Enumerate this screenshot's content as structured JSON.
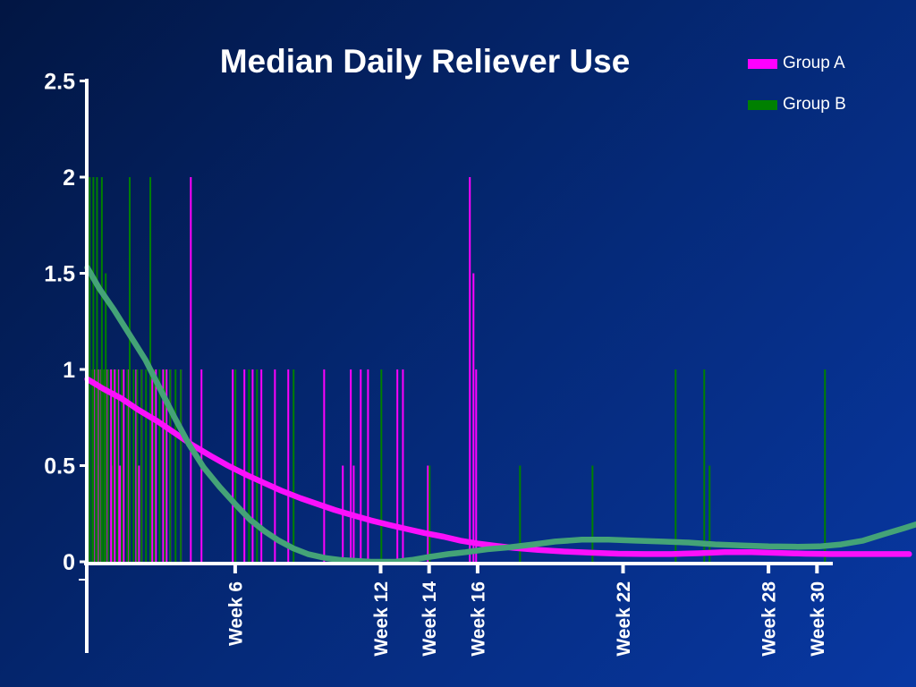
{
  "slide": {
    "background_top_left": "#021643",
    "background_bottom_right": "#0838a3",
    "text_color": "#ffffff"
  },
  "legend": {
    "position": "top-right",
    "items": [
      {
        "label": "Group A",
        "color": "#ff00ff"
      },
      {
        "label": "Group B",
        "color": "#008000"
      }
    ]
  },
  "chart_data": {
    "type": "line",
    "title": "Median Daily Reliever Use",
    "xlabel": "",
    "ylabel": "",
    "x_unit": "weeks",
    "y_unit": "reliever uses per day",
    "xlim": [
      -0.3,
      34.2
    ],
    "ylim": [
      0,
      2.5
    ],
    "grid": false,
    "legend_position": "top-right",
    "axis_color": "#ffffff",
    "y_ticks": [
      {
        "label": "2.5",
        "value": 2.5
      },
      {
        "label": "2",
        "value": 2.0
      },
      {
        "label": "1.5",
        "value": 1.5
      },
      {
        "label": "1",
        "value": 1.0
      },
      {
        "label": "0.5",
        "value": 0.5
      },
      {
        "label": "0",
        "value": 0.0
      }
    ],
    "x_ticks": [
      {
        "label": "Week 6",
        "value": 6
      },
      {
        "label": "Week 12",
        "value": 12
      },
      {
        "label": "Week 14",
        "value": 14
      },
      {
        "label": "Week 16",
        "value": 16
      },
      {
        "label": "Week 22",
        "value": 22
      },
      {
        "label": "Week 28",
        "value": 28
      },
      {
        "label": "Week 30",
        "value": 30
      }
    ],
    "series": [
      {
        "name": "Group A",
        "spike_color": "#ff00ff",
        "line_color": "#fb10fb",
        "median_line": [
          [
            -0.1,
            0.95
          ],
          [
            0.55,
            0.9
          ],
          [
            1.3,
            0.85
          ],
          [
            2.0,
            0.79
          ],
          [
            2.8,
            0.73
          ],
          [
            3.5,
            0.67
          ],
          [
            4.2,
            0.61
          ],
          [
            5.0,
            0.55
          ],
          [
            5.7,
            0.5
          ],
          [
            6.5,
            0.45
          ],
          [
            7.2,
            0.41
          ],
          [
            7.9,
            0.37
          ],
          [
            8.7,
            0.33
          ],
          [
            9.4,
            0.3
          ],
          [
            10.1,
            0.27
          ],
          [
            10.9,
            0.24
          ],
          [
            11.6,
            0.215
          ],
          [
            12.4,
            0.19
          ],
          [
            13.1,
            0.17
          ],
          [
            13.8,
            0.15
          ],
          [
            14.6,
            0.13
          ],
          [
            15.3,
            0.11
          ],
          [
            16.0,
            0.095
          ],
          [
            16.8,
            0.082
          ],
          [
            17.5,
            0.072
          ],
          [
            18.5,
            0.062
          ],
          [
            19.6,
            0.053
          ],
          [
            20.7,
            0.047
          ],
          [
            21.8,
            0.042
          ],
          [
            22.9,
            0.04
          ],
          [
            24.0,
            0.04
          ],
          [
            25.1,
            0.044
          ],
          [
            26.2,
            0.05
          ],
          [
            27.3,
            0.05
          ],
          [
            28.4,
            0.046
          ],
          [
            29.5,
            0.042
          ],
          [
            30.6,
            0.04
          ],
          [
            31.7,
            0.04
          ],
          [
            32.8,
            0.04
          ],
          [
            33.8,
            0.04
          ]
        ],
        "spikes": [
          [
            0.18,
            1
          ],
          [
            0.37,
            1
          ],
          [
            0.48,
            1
          ],
          [
            0.63,
            1
          ],
          [
            0.74,
            1
          ],
          [
            0.88,
            1
          ],
          [
            1.03,
            1
          ],
          [
            1.18,
            1
          ],
          [
            1.4,
            1
          ],
          [
            1.62,
            1
          ],
          [
            1.92,
            1
          ],
          [
            2.14,
            1
          ],
          [
            2.58,
            1
          ],
          [
            2.73,
            1
          ],
          [
            3.03,
            1
          ],
          [
            3.17,
            1
          ],
          [
            3.32,
            1
          ],
          [
            3.76,
            1
          ],
          [
            4.17,
            2
          ],
          [
            4.61,
            1
          ],
          [
            5.9,
            1
          ],
          [
            6.38,
            1
          ],
          [
            6.72,
            1
          ],
          [
            7.08,
            1
          ],
          [
            7.64,
            1
          ],
          [
            8.19,
            1
          ],
          [
            9.67,
            1
          ],
          [
            10.77,
            1
          ],
          [
            11.18,
            1
          ],
          [
            11.48,
            1
          ],
          [
            12.69,
            1
          ],
          [
            12.92,
            1
          ],
          [
            15.68,
            2
          ],
          [
            15.83,
            1.5
          ],
          [
            15.94,
            1
          ],
          [
            0.3,
            0.5
          ],
          [
            0.92,
            0.5
          ],
          [
            1.25,
            0.5
          ],
          [
            2.03,
            0.5
          ],
          [
            10.44,
            0.5
          ],
          [
            10.89,
            0.5
          ],
          [
            13.95,
            0.5
          ]
        ]
      },
      {
        "name": "Group B",
        "spike_color": "#008000",
        "line_color": "#44a377",
        "median_line": [
          [
            -0.1,
            1.53
          ],
          [
            0.4,
            1.42
          ],
          [
            1.0,
            1.31
          ],
          [
            1.65,
            1.18
          ],
          [
            2.3,
            1.05
          ],
          [
            2.9,
            0.9
          ],
          [
            3.5,
            0.75
          ],
          [
            4.1,
            0.61
          ],
          [
            4.7,
            0.49
          ],
          [
            5.35,
            0.39
          ],
          [
            6.0,
            0.3
          ],
          [
            6.6,
            0.22
          ],
          [
            7.2,
            0.16
          ],
          [
            7.8,
            0.11
          ],
          [
            8.4,
            0.07
          ],
          [
            9.0,
            0.04
          ],
          [
            9.7,
            0.02
          ],
          [
            10.3,
            0.01
          ],
          [
            10.9,
            0.005
          ],
          [
            11.6,
            0.0
          ],
          [
            12.6,
            0.0
          ],
          [
            13.3,
            0.01
          ],
          [
            14.0,
            0.025
          ],
          [
            14.8,
            0.04
          ],
          [
            15.5,
            0.05
          ],
          [
            16.4,
            0.065
          ],
          [
            17.3,
            0.075
          ],
          [
            18.3,
            0.09
          ],
          [
            19.2,
            0.105
          ],
          [
            20.3,
            0.115
          ],
          [
            21.4,
            0.115
          ],
          [
            22.5,
            0.11
          ],
          [
            23.6,
            0.105
          ],
          [
            24.7,
            0.1
          ],
          [
            25.8,
            0.09
          ],
          [
            26.9,
            0.085
          ],
          [
            28.0,
            0.08
          ],
          [
            29.2,
            0.078
          ],
          [
            30.1,
            0.08
          ],
          [
            31.0,
            0.09
          ],
          [
            31.9,
            0.11
          ],
          [
            32.8,
            0.145
          ],
          [
            33.6,
            0.175
          ],
          [
            34.1,
            0.195
          ]
        ],
        "spikes": [
          [
            0.0,
            2
          ],
          [
            0.15,
            2
          ],
          [
            0.3,
            2
          ],
          [
            0.5,
            2
          ],
          [
            1.65,
            2
          ],
          [
            2.5,
            2
          ],
          [
            0.66,
            1.5
          ],
          [
            0.11,
            1
          ],
          [
            0.26,
            1
          ],
          [
            0.41,
            1
          ],
          [
            0.59,
            1
          ],
          [
            0.77,
            1
          ],
          [
            0.96,
            1
          ],
          [
            1.14,
            1
          ],
          [
            1.33,
            1
          ],
          [
            1.55,
            1
          ],
          [
            1.81,
            1
          ],
          [
            1.96,
            1
          ],
          [
            2.14,
            1
          ],
          [
            2.32,
            1
          ],
          [
            2.66,
            1
          ],
          [
            2.88,
            1
          ],
          [
            3.1,
            1
          ],
          [
            3.32,
            1
          ],
          [
            3.54,
            1
          ],
          [
            3.76,
            1
          ],
          [
            6.01,
            1
          ],
          [
            6.57,
            1
          ],
          [
            6.9,
            1
          ],
          [
            8.41,
            1
          ],
          [
            12.03,
            1
          ],
          [
            24.17,
            1
          ],
          [
            25.35,
            1
          ],
          [
            30.33,
            1
          ],
          [
            14.02,
            0.5
          ],
          [
            17.75,
            0.5
          ],
          [
            20.74,
            0.5
          ],
          [
            25.57,
            0.5
          ]
        ]
      }
    ]
  }
}
